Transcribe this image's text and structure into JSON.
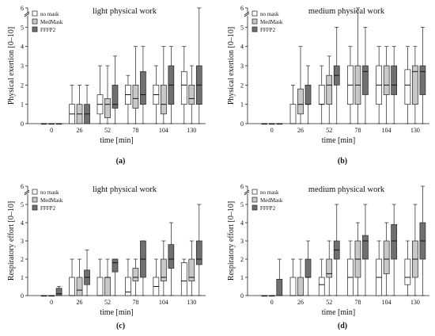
{
  "legend": [
    {
      "label": "no mask",
      "color": "#ffffff"
    },
    {
      "label": "MedMask",
      "color": "#c8c8c8"
    },
    {
      "label": "FFFP2",
      "color": "#707070"
    }
  ],
  "chart_data": [
    {
      "type": "boxplot",
      "caption": "(a)",
      "title": "light physical work",
      "xlabel": "time [min]",
      "ylabel": "Physical exertion [0–10]",
      "categories": [
        "0",
        "26",
        "52",
        "78",
        "104",
        "130"
      ],
      "ylim": [
        0,
        6
      ],
      "yticks": [
        0,
        1,
        2,
        3,
        4,
        5,
        6
      ],
      "axis_break": true,
      "series": [
        {
          "name": "no mask",
          "values": [
            {
              "min": 0,
              "q1": 0,
              "med": 0,
              "q3": 0,
              "max": 0
            },
            {
              "min": 0,
              "q1": 0,
              "med": 0.5,
              "q3": 1,
              "max": 2
            },
            {
              "min": 0,
              "q1": 0.5,
              "med": 1,
              "q3": 1.5,
              "max": 3
            },
            {
              "min": 0,
              "q1": 1,
              "med": 1.5,
              "q3": 2,
              "max": 2.5
            },
            {
              "min": 0,
              "q1": 1,
              "med": 1.5,
              "q3": 2,
              "max": 3
            },
            {
              "min": 0,
              "q1": 1,
              "med": 2,
              "q3": 2.7,
              "max": 4
            }
          ]
        },
        {
          "name": "MedMask",
          "values": [
            {
              "min": 0,
              "q1": 0,
              "med": 0,
              "q3": 0,
              "max": 0
            },
            {
              "min": 0,
              "q1": 0,
              "med": 0.5,
              "q3": 1,
              "max": 2
            },
            {
              "min": 0,
              "q1": 0.3,
              "med": 1,
              "q3": 1.3,
              "max": 3
            },
            {
              "min": 0,
              "q1": 0.8,
              "med": 1.3,
              "q3": 2,
              "max": 4
            },
            {
              "min": 0,
              "q1": 0.5,
              "med": 1,
              "q3": 2,
              "max": 4
            },
            {
              "min": 0,
              "q1": 1,
              "med": 1.3,
              "q3": 2,
              "max": 3
            }
          ]
        },
        {
          "name": "FFFP2",
          "values": [
            {
              "min": 0,
              "q1": 0,
              "med": 0,
              "q3": 0,
              "max": 0
            },
            {
              "min": 0,
              "q1": 0,
              "med": 0.5,
              "q3": 1,
              "max": 2
            },
            {
              "min": 0,
              "q1": 0.8,
              "med": 1,
              "q3": 2,
              "max": 3.5
            },
            {
              "min": 0,
              "q1": 1,
              "med": 1.5,
              "q3": 2.7,
              "max": 4
            },
            {
              "min": 0,
              "q1": 1,
              "med": 2,
              "q3": 3,
              "max": 4
            },
            {
              "min": 0,
              "q1": 1,
              "med": 2,
              "q3": 3,
              "max": 6
            }
          ]
        }
      ]
    },
    {
      "type": "boxplot",
      "caption": "(b)",
      "title": "medium physical work",
      "xlabel": "time [min]",
      "ylabel": "Physical exertion [0–10]",
      "categories": [
        "0",
        "26",
        "52",
        "78",
        "104",
        "130"
      ],
      "ylim": [
        0,
        6
      ],
      "yticks": [
        0,
        1,
        2,
        3,
        4,
        5,
        6
      ],
      "axis_break": true,
      "series": [
        {
          "name": "no mask",
          "values": [
            {
              "min": 0,
              "q1": 0,
              "med": 0,
              "q3": 0,
              "max": 0
            },
            {
              "min": 0,
              "q1": 0,
              "med": 0,
              "q3": 1,
              "max": 2
            },
            {
              "min": 0,
              "q1": 1,
              "med": 1,
              "q3": 2,
              "max": 3
            },
            {
              "min": 0,
              "q1": 1,
              "med": 2,
              "q3": 3,
              "max": 4
            },
            {
              "min": 0,
              "q1": 1,
              "med": 2,
              "q3": 3,
              "max": 4
            },
            {
              "min": 0,
              "q1": 1,
              "med": 2,
              "q3": 2.8,
              "max": 4
            }
          ]
        },
        {
          "name": "MedMask",
          "values": [
            {
              "min": 0,
              "q1": 0,
              "med": 0,
              "q3": 0,
              "max": 0
            },
            {
              "min": 0,
              "q1": 0.5,
              "med": 1,
              "q3": 1.8,
              "max": 4
            },
            {
              "min": 0,
              "q1": 1,
              "med": 2,
              "q3": 2.5,
              "max": 3.5
            },
            {
              "min": 0,
              "q1": 1,
              "med": 2,
              "q3": 3,
              "max": 6
            },
            {
              "min": 0,
              "q1": 1.5,
              "med": 2,
              "q3": 3,
              "max": 4
            },
            {
              "min": 0,
              "q1": 1,
              "med": 2.7,
              "q3": 3,
              "max": 4
            }
          ]
        },
        {
          "name": "FFFP2",
          "values": [
            {
              "min": 0,
              "q1": 0,
              "med": 0,
              "q3": 0,
              "max": 0
            },
            {
              "min": 0,
              "q1": 1,
              "med": 1,
              "q3": 2,
              "max": 3
            },
            {
              "min": 0,
              "q1": 2,
              "med": 2.5,
              "q3": 3,
              "max": 5
            },
            {
              "min": 0,
              "q1": 1.5,
              "med": 2.7,
              "q3": 3,
              "max": 5
            },
            {
              "min": 0,
              "q1": 1.5,
              "med": 2,
              "q3": 3,
              "max": 4
            },
            {
              "min": 0,
              "q1": 1.5,
              "med": 2.7,
              "q3": 3,
              "max": 5
            }
          ]
        }
      ]
    },
    {
      "type": "boxplot",
      "caption": "(c)",
      "title": "light physical work",
      "xlabel": "time [min]",
      "ylabel": "Respiratory effort [0–10]",
      "categories": [
        "0",
        "26",
        "52",
        "78",
        "104",
        "130"
      ],
      "ylim": [
        0,
        6
      ],
      "yticks": [
        0,
        1,
        2,
        3,
        4,
        5,
        6
      ],
      "axis_break": true,
      "series": [
        {
          "name": "no mask",
          "values": [
            {
              "min": 0,
              "q1": 0,
              "med": 0,
              "q3": 0,
              "max": 0
            },
            {
              "min": 0,
              "q1": 0,
              "med": 0,
              "q3": 1,
              "max": 2
            },
            {
              "min": 0,
              "q1": 0,
              "med": 0,
              "q3": 1,
              "max": 2
            },
            {
              "min": 0,
              "q1": 0,
              "med": 0.2,
              "q3": 1,
              "max": 2
            },
            {
              "min": 0,
              "q1": 0,
              "med": 0.5,
              "q3": 1,
              "max": 2
            },
            {
              "min": 0,
              "q1": 0,
              "med": 0.8,
              "q3": 1.8,
              "max": 2
            }
          ]
        },
        {
          "name": "MedMask",
          "values": [
            {
              "min": 0,
              "q1": 0,
              "med": 0,
              "q3": 0,
              "max": 0
            },
            {
              "min": 0,
              "q1": 0,
              "med": 0.3,
              "q3": 1,
              "max": 2
            },
            {
              "min": 0,
              "q1": 0,
              "med": 1,
              "q3": 1,
              "max": 2
            },
            {
              "min": 0,
              "q1": 0.8,
              "med": 1,
              "q3": 1.5,
              "max": 2
            },
            {
              "min": 0,
              "q1": 0.8,
              "med": 1,
              "q3": 2,
              "max": 3
            },
            {
              "min": 0,
              "q1": 0.8,
              "med": 1,
              "q3": 2,
              "max": 3
            }
          ]
        },
        {
          "name": "FFFP2",
          "values": [
            {
              "min": 0,
              "q1": 0,
              "med": 0.1,
              "q3": 0.4,
              "max": 0.5
            },
            {
              "min": 0,
              "q1": 0.6,
              "med": 1,
              "q3": 1.4,
              "max": 2.5
            },
            {
              "min": 0,
              "q1": 1.3,
              "med": 1.8,
              "q3": 2,
              "max": 2
            },
            {
              "min": 0,
              "q1": 1,
              "med": 2,
              "q3": 3,
              "max": 3
            },
            {
              "min": 0,
              "q1": 1.5,
              "med": 2,
              "q3": 2.8,
              "max": 4
            },
            {
              "min": 0,
              "q1": 1.7,
              "med": 2,
              "q3": 3,
              "max": 5
            }
          ]
        }
      ]
    },
    {
      "type": "boxplot",
      "caption": "(d)",
      "title": "medium physical work",
      "xlabel": "time [min]",
      "ylabel": "Respiratory effort [0–10]",
      "categories": [
        "0",
        "26",
        "52",
        "78",
        "104",
        "130"
      ],
      "ylim": [
        0,
        6
      ],
      "yticks": [
        0,
        1,
        2,
        3,
        4,
        5,
        6
      ],
      "axis_break": true,
      "series": [
        {
          "name": "no mask",
          "values": [
            {
              "min": 0,
              "q1": 0,
              "med": 0,
              "q3": 0,
              "max": 0
            },
            {
              "min": 0,
              "q1": 0,
              "med": 0,
              "q3": 1,
              "max": 2
            },
            {
              "min": 0,
              "q1": 0,
              "med": 0.6,
              "q3": 1,
              "max": 2
            },
            {
              "min": 0,
              "q1": 0,
              "med": 1,
              "q3": 2,
              "max": 3
            },
            {
              "min": 0,
              "q1": 0,
              "med": 1,
              "q3": 2,
              "max": 3
            },
            {
              "min": 0,
              "q1": 0.6,
              "med": 1,
              "q3": 2,
              "max": 3
            }
          ]
        },
        {
          "name": "MedMask",
          "values": [
            {
              "min": 0,
              "q1": 0,
              "med": 0,
              "q3": 0,
              "max": 0
            },
            {
              "min": 0,
              "q1": 0,
              "med": 0,
              "q3": 1,
              "max": 2
            },
            {
              "min": 0,
              "q1": 1,
              "med": 1.2,
              "q3": 2,
              "max": 3
            },
            {
              "min": 0,
              "q1": 1,
              "med": 2,
              "q3": 3,
              "max": 4
            },
            {
              "min": 0,
              "q1": 1.2,
              "med": 2,
              "q3": 3,
              "max": 4
            },
            {
              "min": 0,
              "q1": 1,
              "med": 2,
              "q3": 3,
              "max": 5
            }
          ]
        },
        {
          "name": "FFFP2",
          "values": [
            {
              "min": 0,
              "q1": 0,
              "med": 0,
              "q3": 0.9,
              "max": 2
            },
            {
              "min": 0,
              "q1": 1,
              "med": 1,
              "q3": 2,
              "max": 3
            },
            {
              "min": 0,
              "q1": 2,
              "med": 2.5,
              "q3": 3,
              "max": 5
            },
            {
              "min": 0,
              "q1": 2,
              "med": 3,
              "q3": 3.3,
              "max": 5
            },
            {
              "min": 0,
              "q1": 2,
              "med": 3,
              "q3": 3.9,
              "max": 5
            },
            {
              "min": 0,
              "q1": 2,
              "med": 3,
              "q3": 4,
              "max": 6
            }
          ]
        }
      ]
    }
  ]
}
